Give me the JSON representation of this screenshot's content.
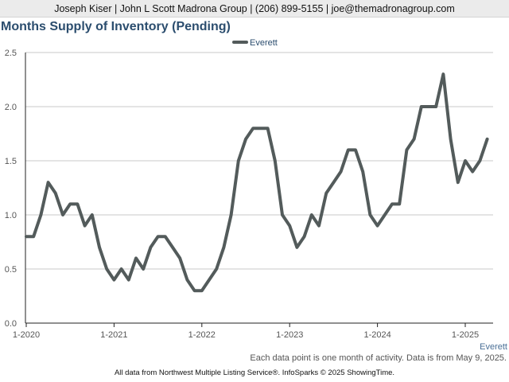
{
  "header": {
    "contact": "Joseph Kiser | John L Scott Madrona Group | (206) 899-5155 | joe@themadronagroup.com"
  },
  "footer": {
    "note": "Each data point is one month of activity. Data is from May 9, 2025.",
    "source": "All data from Northwest Multiple Listing Service®. InfoSparks © 2025 ShowingTime."
  },
  "chart_data": {
    "type": "line",
    "title": "Months Supply of Inventory (Pending)",
    "xlabel": "",
    "ylabel": "",
    "x_tick_labels": [
      "1-2020",
      "1-2021",
      "1-2022",
      "1-2023",
      "1-2024",
      "1-2025"
    ],
    "x_range": [
      "2020-01",
      "2025-04"
    ],
    "y_tick_labels": [
      "0.0",
      "0.5",
      "1.0",
      "1.5",
      "2.0",
      "2.5"
    ],
    "ylim": [
      0,
      2.5
    ],
    "grid": true,
    "legend_position": "top-center",
    "end_label": "Everett",
    "series": [
      {
        "name": "Everett",
        "color": "#535b5b",
        "x": [
          "2020-01",
          "2020-02",
          "2020-03",
          "2020-04",
          "2020-05",
          "2020-06",
          "2020-07",
          "2020-08",
          "2020-09",
          "2020-10",
          "2020-11",
          "2020-12",
          "2021-01",
          "2021-02",
          "2021-03",
          "2021-04",
          "2021-05",
          "2021-06",
          "2021-07",
          "2021-08",
          "2021-09",
          "2021-10",
          "2021-11",
          "2021-12",
          "2022-01",
          "2022-02",
          "2022-03",
          "2022-04",
          "2022-05",
          "2022-06",
          "2022-07",
          "2022-08",
          "2022-09",
          "2022-10",
          "2022-11",
          "2022-12",
          "2023-01",
          "2023-02",
          "2023-03",
          "2023-04",
          "2023-05",
          "2023-06",
          "2023-07",
          "2023-08",
          "2023-09",
          "2023-10",
          "2023-11",
          "2023-12",
          "2024-01",
          "2024-02",
          "2024-03",
          "2024-04",
          "2024-05",
          "2024-06",
          "2024-07",
          "2024-08",
          "2024-09",
          "2024-10",
          "2024-11",
          "2024-12",
          "2025-01",
          "2025-02",
          "2025-03",
          "2025-04"
        ],
        "values": [
          0.8,
          0.8,
          1.0,
          1.3,
          1.2,
          1.0,
          1.1,
          1.1,
          0.9,
          1.0,
          0.7,
          0.5,
          0.4,
          0.5,
          0.4,
          0.6,
          0.5,
          0.7,
          0.8,
          0.8,
          0.7,
          0.6,
          0.4,
          0.3,
          0.3,
          0.4,
          0.5,
          0.7,
          1.0,
          1.5,
          1.7,
          1.8,
          1.8,
          1.8,
          1.5,
          1.0,
          0.9,
          0.7,
          0.8,
          1.0,
          0.9,
          1.2,
          1.3,
          1.4,
          1.6,
          1.6,
          1.4,
          1.0,
          0.9,
          1.0,
          1.1,
          1.1,
          1.6,
          1.7,
          2.0,
          2.0,
          2.0,
          2.3,
          1.7,
          1.3,
          1.5,
          1.4,
          1.5,
          1.7
        ]
      }
    ]
  }
}
